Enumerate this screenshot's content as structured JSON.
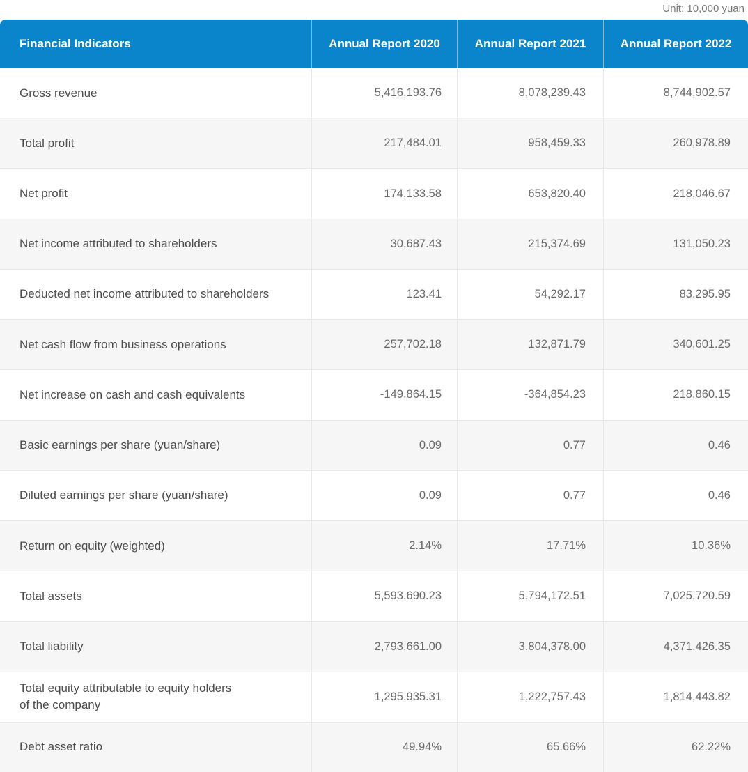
{
  "unit_note": "Unit: 10,000 yuan",
  "colors": {
    "header_bg": "#0a84cb",
    "header_text": "#ffffff",
    "stripe_row_bg": "#f6f6f6",
    "grid_border": "#e8e8e8",
    "label_text": "#4d4d4d",
    "value_text": "#6b6b6b",
    "unit_text": "#7a7a7a"
  },
  "chart_data": {
    "type": "table",
    "title": "Financial Indicators",
    "unit_label": "Unit: 10,000 yuan",
    "columns": [
      "Financial Indicators",
      "Annual Report 2020",
      "Annual Report 2021",
      "Annual Report 2022"
    ],
    "rows": [
      {
        "label": "Gross revenue",
        "values": [
          "5,416,193.76",
          "8,078,239.43",
          "8,744,902.57"
        ]
      },
      {
        "label": "Total profit",
        "values": [
          "217,484.01",
          "958,459.33",
          "260,978.89"
        ]
      },
      {
        "label": "Net profit",
        "values": [
          "174,133.58",
          "653,820.40",
          "218,046.67"
        ]
      },
      {
        "label": "Net income attributed to shareholders",
        "values": [
          "30,687.43",
          "215,374.69",
          "131,050.23"
        ]
      },
      {
        "label": "Deducted net income attributed to shareholders",
        "values": [
          "123.41",
          "54,292.17",
          "83,295.95"
        ]
      },
      {
        "label": "Net cash flow from business operations",
        "values": [
          "257,702.18",
          "132,871.79",
          "340,601.25"
        ]
      },
      {
        "label": "Net increase on cash and cash equivalents",
        "values": [
          "-149,864.15",
          "-364,854.23",
          "218,860.15"
        ]
      },
      {
        "label": "Basic earnings per share (yuan/share)",
        "values": [
          "0.09",
          "0.77",
          "0.46"
        ]
      },
      {
        "label": "Diluted earnings per share (yuan/share)",
        "values": [
          "0.09",
          "0.77",
          "0.46"
        ]
      },
      {
        "label": "Return on equity (weighted)",
        "values": [
          "2.14%",
          "17.71%",
          "10.36%"
        ]
      },
      {
        "label": "Total assets",
        "values": [
          "5,593,690.23",
          "5,794,172.51",
          "7,025,720.59"
        ]
      },
      {
        "label": "Total liability",
        "values": [
          "2,793,661.00",
          "3.804,378.00",
          "4,371,426.35"
        ]
      },
      {
        "label": "Total equity attributable to equity holders\nof the company",
        "values": [
          "1,295,935.31",
          "1,222,757.43",
          "1,814,443.82"
        ]
      },
      {
        "label": "Debt asset ratio",
        "values": [
          "49.94%",
          "65.66%",
          "62.22%"
        ]
      }
    ]
  }
}
